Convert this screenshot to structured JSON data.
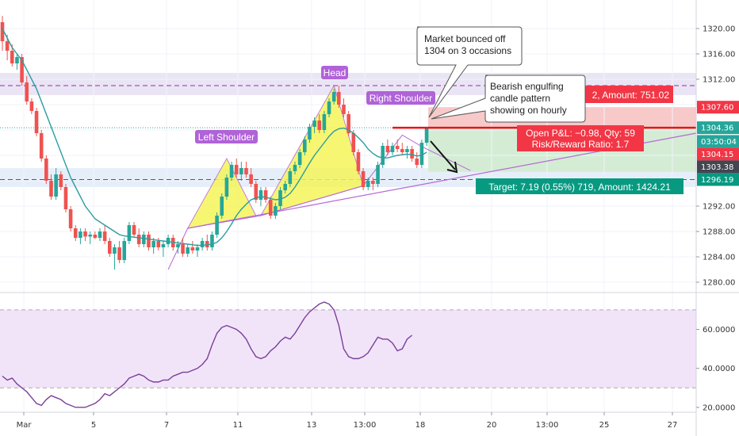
{
  "chart_data": [
    {
      "type": "candlestick",
      "y_ticks": [
        "1320.00",
        "1316.00",
        "1312.00",
        "1307.60",
        "1304.36",
        "1304.15",
        "1303.38",
        "1296.19",
        "1292.00",
        "1288.00",
        "1284.00",
        "1280.00"
      ],
      "x_ticks": [
        "Mar",
        "5",
        "7",
        "11",
        "13",
        "13:00",
        "18",
        "20",
        "13:00",
        "25",
        "27"
      ],
      "ylim": [
        1278.5,
        1324.5
      ],
      "price_tags": [
        {
          "label": "1307.60",
          "value": 1307.6,
          "color": "#f23645"
        },
        {
          "label": "1304.36",
          "value": 1304.36,
          "color": "#26a69a"
        },
        {
          "label": "03:50:04",
          "value": 1302.2,
          "color": "#26a69a"
        },
        {
          "label": "1304.15",
          "value": 1300.2,
          "color": "#f23645"
        },
        {
          "label": "1303.38",
          "value": 1298.2,
          "color": "#434651"
        },
        {
          "label": "1296.19",
          "value": 1296.19,
          "color": "#089981"
        }
      ],
      "candles": [
        {
          "o": 1321,
          "h": 1322,
          "l": 1316.5,
          "c": 1318
        },
        {
          "o": 1318,
          "h": 1319,
          "l": 1315,
          "c": 1316.5
        },
        {
          "o": 1316.5,
          "h": 1317.5,
          "l": 1314,
          "c": 1314.5
        },
        {
          "o": 1314.5,
          "h": 1316,
          "l": 1313.5,
          "c": 1315.5
        },
        {
          "o": 1315.5,
          "h": 1316,
          "l": 1311,
          "c": 1311.5
        },
        {
          "o": 1311.5,
          "h": 1312.5,
          "l": 1308,
          "c": 1308.5
        },
        {
          "o": 1308.5,
          "h": 1309,
          "l": 1306.5,
          "c": 1307
        },
        {
          "o": 1307,
          "h": 1307.5,
          "l": 1303,
          "c": 1303.5
        },
        {
          "o": 1303.5,
          "h": 1304,
          "l": 1299,
          "c": 1299.5
        },
        {
          "o": 1299.5,
          "h": 1300,
          "l": 1295.5,
          "c": 1296
        },
        {
          "o": 1296,
          "h": 1297,
          "l": 1293,
          "c": 1293.5
        },
        {
          "o": 1293.5,
          "h": 1298,
          "l": 1293,
          "c": 1297
        },
        {
          "o": 1297,
          "h": 1297.5,
          "l": 1294.5,
          "c": 1295
        },
        {
          "o": 1295,
          "h": 1295.5,
          "l": 1291,
          "c": 1291.5
        },
        {
          "o": 1291.5,
          "h": 1292,
          "l": 1288,
          "c": 1288.5
        },
        {
          "o": 1288.5,
          "h": 1289,
          "l": 1286.5,
          "c": 1287
        },
        {
          "o": 1287,
          "h": 1288.5,
          "l": 1286,
          "c": 1288
        },
        {
          "o": 1288,
          "h": 1288.5,
          "l": 1286.5,
          "c": 1287.2
        },
        {
          "o": 1287.2,
          "h": 1288,
          "l": 1286,
          "c": 1287.5
        },
        {
          "o": 1287.5,
          "h": 1288,
          "l": 1286.8,
          "c": 1287
        },
        {
          "o": 1287,
          "h": 1288.5,
          "l": 1286.5,
          "c": 1288
        },
        {
          "o": 1288,
          "h": 1289,
          "l": 1286,
          "c": 1286.5
        },
        {
          "o": 1286.5,
          "h": 1287,
          "l": 1284,
          "c": 1284.5
        },
        {
          "o": 1284.5,
          "h": 1286,
          "l": 1282,
          "c": 1285.5
        },
        {
          "o": 1285.5,
          "h": 1286.5,
          "l": 1283,
          "c": 1283.5
        },
        {
          "o": 1283.5,
          "h": 1287,
          "l": 1283,
          "c": 1286.5
        },
        {
          "o": 1286.5,
          "h": 1289.5,
          "l": 1286,
          "c": 1289
        },
        {
          "o": 1289,
          "h": 1289.5,
          "l": 1287,
          "c": 1287.5
        },
        {
          "o": 1287.5,
          "h": 1288.5,
          "l": 1285.5,
          "c": 1286
        },
        {
          "o": 1286,
          "h": 1288,
          "l": 1285.5,
          "c": 1287.5
        },
        {
          "o": 1287.5,
          "h": 1288,
          "l": 1285,
          "c": 1285.5
        },
        {
          "o": 1285.5,
          "h": 1287,
          "l": 1284.5,
          "c": 1286.5
        },
        {
          "o": 1286.5,
          "h": 1287,
          "l": 1285,
          "c": 1285.5
        },
        {
          "o": 1285.5,
          "h": 1286.5,
          "l": 1284,
          "c": 1286
        },
        {
          "o": 1286,
          "h": 1287.5,
          "l": 1285.5,
          "c": 1287
        },
        {
          "o": 1287,
          "h": 1287.5,
          "l": 1285,
          "c": 1285.5
        },
        {
          "o": 1285.5,
          "h": 1286.5,
          "l": 1284.5,
          "c": 1286
        },
        {
          "o": 1286,
          "h": 1287,
          "l": 1284,
          "c": 1284.5
        },
        {
          "o": 1284.5,
          "h": 1286,
          "l": 1284,
          "c": 1285.5
        },
        {
          "o": 1285.5,
          "h": 1286.5,
          "l": 1284.5,
          "c": 1285
        },
        {
          "o": 1285,
          "h": 1286,
          "l": 1284,
          "c": 1285.5
        },
        {
          "o": 1285.5,
          "h": 1287,
          "l": 1285,
          "c": 1286.5
        },
        {
          "o": 1286.5,
          "h": 1287.5,
          "l": 1285,
          "c": 1285.5
        },
        {
          "o": 1285.5,
          "h": 1288,
          "l": 1285,
          "c": 1287.5
        },
        {
          "o": 1287.5,
          "h": 1291,
          "l": 1287,
          "c": 1290.5
        },
        {
          "o": 1290.5,
          "h": 1294,
          "l": 1290,
          "c": 1293.5
        },
        {
          "o": 1293.5,
          "h": 1297,
          "l": 1293,
          "c": 1296.5
        },
        {
          "o": 1296.5,
          "h": 1299,
          "l": 1296,
          "c": 1298.5
        },
        {
          "o": 1298.5,
          "h": 1299.5,
          "l": 1296.5,
          "c": 1297
        },
        {
          "o": 1297,
          "h": 1299,
          "l": 1296,
          "c": 1298
        },
        {
          "o": 1298,
          "h": 1299,
          "l": 1296.5,
          "c": 1297
        },
        {
          "o": 1297,
          "h": 1298,
          "l": 1295,
          "c": 1295.5
        },
        {
          "o": 1295.5,
          "h": 1296,
          "l": 1292.5,
          "c": 1293
        },
        {
          "o": 1293,
          "h": 1295,
          "l": 1292,
          "c": 1294.5
        },
        {
          "o": 1294.5,
          "h": 1295,
          "l": 1292.5,
          "c": 1293
        },
        {
          "o": 1293,
          "h": 1293.5,
          "l": 1290,
          "c": 1290.5
        },
        {
          "o": 1290.5,
          "h": 1292.5,
          "l": 1290,
          "c": 1292
        },
        {
          "o": 1292,
          "h": 1295,
          "l": 1291.5,
          "c": 1294.5
        },
        {
          "o": 1294.5,
          "h": 1296,
          "l": 1294,
          "c": 1295.5
        },
        {
          "o": 1295.5,
          "h": 1298,
          "l": 1295,
          "c": 1297.5
        },
        {
          "o": 1297.5,
          "h": 1299,
          "l": 1297,
          "c": 1298.5
        },
        {
          "o": 1298.5,
          "h": 1301,
          "l": 1298,
          "c": 1300.5
        },
        {
          "o": 1300.5,
          "h": 1303,
          "l": 1300,
          "c": 1302.5
        },
        {
          "o": 1302.5,
          "h": 1305,
          "l": 1302,
          "c": 1304.5
        },
        {
          "o": 1304.5,
          "h": 1306,
          "l": 1303.5,
          "c": 1305.5
        },
        {
          "o": 1305.5,
          "h": 1306.5,
          "l": 1303.5,
          "c": 1304
        },
        {
          "o": 1304,
          "h": 1307,
          "l": 1303.5,
          "c": 1306.5
        },
        {
          "o": 1306.5,
          "h": 1309,
          "l": 1306,
          "c": 1308.5
        },
        {
          "o": 1308.5,
          "h": 1310.5,
          "l": 1308,
          "c": 1310
        },
        {
          "o": 1310,
          "h": 1311,
          "l": 1307.5,
          "c": 1308
        },
        {
          "o": 1308,
          "h": 1309,
          "l": 1306,
          "c": 1306.5
        },
        {
          "o": 1306.5,
          "h": 1307,
          "l": 1303,
          "c": 1303.5
        },
        {
          "o": 1303.5,
          "h": 1304,
          "l": 1300,
          "c": 1300.5
        },
        {
          "o": 1300.5,
          "h": 1301,
          "l": 1297,
          "c": 1297.5
        },
        {
          "o": 1297.5,
          "h": 1298,
          "l": 1294.5,
          "c": 1295
        },
        {
          "o": 1295,
          "h": 1296.5,
          "l": 1294.5,
          "c": 1296
        },
        {
          "o": 1296,
          "h": 1296.5,
          "l": 1294.5,
          "c": 1295.5
        },
        {
          "o": 1295.5,
          "h": 1299,
          "l": 1295,
          "c": 1298.5
        },
        {
          "o": 1298.5,
          "h": 1302,
          "l": 1298,
          "c": 1301.5
        },
        {
          "o": 1301.5,
          "h": 1302.5,
          "l": 1300,
          "c": 1300.5
        },
        {
          "o": 1300.5,
          "h": 1302,
          "l": 1300,
          "c": 1301.5
        },
        {
          "o": 1301.5,
          "h": 1302.5,
          "l": 1300.5,
          "c": 1301
        },
        {
          "o": 1301,
          "h": 1302,
          "l": 1300,
          "c": 1300.5
        },
        {
          "o": 1300.5,
          "h": 1301.5,
          "l": 1299.5,
          "c": 1301
        },
        {
          "o": 1301,
          "h": 1301.5,
          "l": 1299,
          "c": 1299.5
        },
        {
          "o": 1299.5,
          "h": 1300.5,
          "l": 1298,
          "c": 1298.5
        },
        {
          "o": 1298.5,
          "h": 1302.5,
          "l": 1298,
          "c": 1302
        },
        {
          "o": 1302,
          "h": 1304.5,
          "l": 1301.5,
          "c": 1304.3
        }
      ],
      "ma": [
        1320,
        1318.5,
        1317,
        1316,
        1315,
        1313.5,
        1312,
        1310.5,
        1308.5,
        1306.5,
        1304.5,
        1302.5,
        1300.5,
        1298.5,
        1296.5,
        1295,
        1293.5,
        1292,
        1291,
        1290,
        1289.5,
        1289,
        1288.5,
        1288,
        1287.5,
        1287.3,
        1287.2,
        1287.1,
        1287,
        1286.9,
        1286.8,
        1286.7,
        1286.6,
        1286.5,
        1286.4,
        1286.3,
        1286.2,
        1286.1,
        1286,
        1285.9,
        1285.8,
        1285.8,
        1285.9,
        1286,
        1286.3,
        1287,
        1288,
        1289.2,
        1290.5,
        1291.5,
        1292.3,
        1293,
        1293.3,
        1293.5,
        1293.4,
        1293.2,
        1293,
        1293.1,
        1293.4,
        1294,
        1295,
        1296.2,
        1297.5,
        1298.8,
        1300,
        1301,
        1302,
        1303,
        1303.8,
        1304.2,
        1304.3,
        1304,
        1303.5,
        1302.8,
        1302,
        1301,
        1300.3,
        1299.8,
        1299.6,
        1299.6,
        1299.8,
        1300,
        1300.1,
        1300.2,
        1300.1,
        1299.9,
        1300,
        1300.5
      ],
      "pattern_points": [
        {
          "label": "Left Shoulder",
          "at": 26
        },
        {
          "label": "Head",
          "at": 70
        },
        {
          "label": "Right Shoulder",
          "at": 84
        }
      ],
      "levels": {
        "stop": 1307.6,
        "entry": 1304.36,
        "target": 1296.19,
        "resistance": 1311.0,
        "support": 1296.19
      }
    },
    {
      "type": "line",
      "y_ticks": [
        "60.0000",
        "40.0000",
        "20.0000"
      ],
      "ylim": [
        17.5,
        78.5
      ],
      "bands": [
        70,
        30
      ],
      "values": [
        36,
        34,
        35,
        32,
        30,
        28,
        25,
        22,
        21,
        24,
        26,
        25,
        24,
        22,
        21,
        20,
        20,
        20,
        21,
        22,
        24,
        27,
        26,
        28,
        30,
        32,
        35,
        36,
        37,
        36,
        34,
        33,
        33,
        34,
        34,
        36,
        37,
        38,
        38,
        39,
        40,
        42,
        45,
        52,
        58,
        61,
        62,
        61,
        60,
        58,
        55,
        50,
        46,
        45,
        46,
        49,
        51,
        54,
        56,
        55,
        58,
        62,
        66,
        69,
        71,
        73,
        74,
        73,
        70,
        62,
        50,
        46,
        45,
        45,
        46,
        48,
        52,
        56,
        55,
        55,
        53,
        49,
        50,
        55,
        57
      ]
    }
  ],
  "annotations": {
    "head": "Head",
    "left_shoulder": "Left Shoulder",
    "right_shoulder": "Right Shoulder",
    "callout_1": [
      "Market bounced off",
      "1304 on 3 occasions"
    ],
    "callout_2": [
      "Bearish engulfing",
      "candle pattern",
      "showing on hourly"
    ],
    "stop_box": "2, Amount: 751.02",
    "pnl_line1": "Open P&L: −0.98, Qty: 59",
    "pnl_line2": "Risk/Reward Ratio: 1.7",
    "target_box": "Target: 7.19 (0.55%) 719, Amount: 1424.21"
  },
  "colors": {
    "up": "#26a69a",
    "down": "#ef5350",
    "ma": "#2a9d9f",
    "rsi": "#7b3f98",
    "pattern_fill": "#f5f55a",
    "pattern_line": "#b768d6",
    "label_purple": "#b063d8",
    "stop_zone": "#f8c9c9",
    "target_zone": "#d4ecd4",
    "band": "#e8e2f4"
  }
}
